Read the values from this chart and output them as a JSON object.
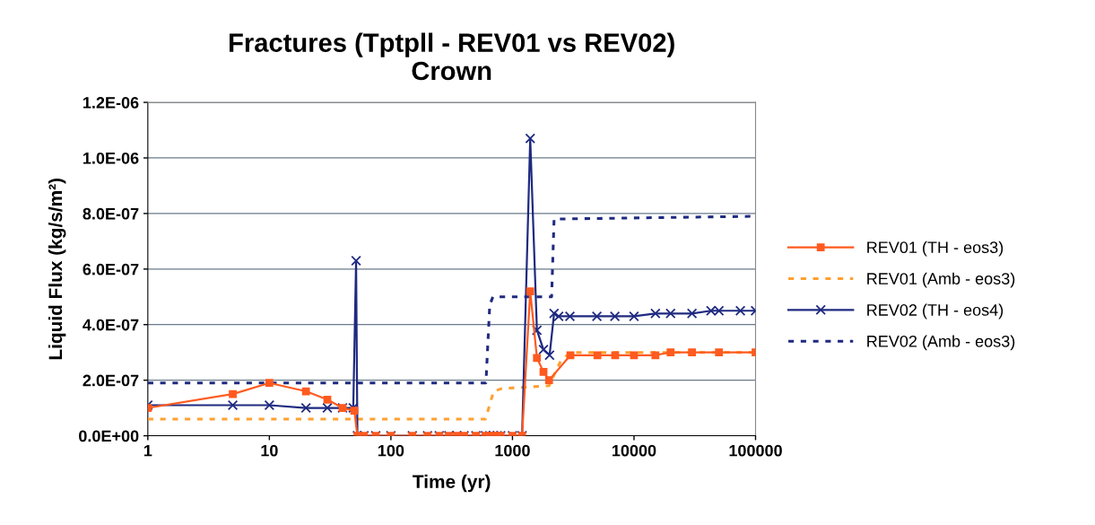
{
  "chart_data": {
    "type": "line",
    "title": "Fractures (Tptpll - REV01 vs REV02)\nCrown",
    "xlabel": "Time (yr)",
    "ylabel": "Liquid Flux (kg/s/m²)",
    "log": "x",
    "xlim": [
      1,
      100000
    ],
    "xticks": [
      1,
      10,
      100,
      1000,
      10000,
      100000
    ],
    "ylim": [
      0,
      1.2e-06
    ],
    "yticks": [
      {
        "value": 0,
        "label": "0.0E+00"
      },
      {
        "value": 2e-07,
        "label": "2.0E-07"
      },
      {
        "value": 4e-07,
        "label": "4.0E-07"
      },
      {
        "value": 6e-07,
        "label": "6.0E-07"
      },
      {
        "value": 8e-07,
        "label": "8.0E-07"
      },
      {
        "value": 1e-06,
        "label": "1.0E-06"
      },
      {
        "value": 1.2e-06,
        "label": "1.2E-06"
      }
    ],
    "grid": "y",
    "legend": "right",
    "series": [
      {
        "name": "REV01 (TH - eos3)",
        "color": "#ff5a1f",
        "marker": "square",
        "line_style": "solid",
        "x": [
          1,
          5,
          10,
          20,
          30,
          40,
          50,
          53,
          60,
          75,
          100,
          150,
          200,
          250,
          300,
          350,
          400,
          500,
          600,
          650,
          700,
          750,
          800,
          1000,
          1200,
          1400,
          1590,
          1800,
          2000,
          3000,
          5000,
          7000,
          10000,
          15000,
          20000,
          30000,
          50000,
          100000
        ],
        "values": [
          1e-07,
          1.5e-07,
          1.9e-07,
          1.6e-07,
          1.3e-07,
          1e-07,
          9e-08,
          0,
          0,
          0,
          0,
          0,
          0,
          0,
          0,
          0,
          0,
          0,
          0,
          0,
          0,
          0,
          0,
          0,
          0,
          5.2e-07,
          2.8e-07,
          2.3e-07,
          2e-07,
          2.9e-07,
          2.9e-07,
          2.9e-07,
          2.9e-07,
          2.9e-07,
          3e-07,
          3e-07,
          3e-07,
          3e-07
        ]
      },
      {
        "name": "REV01 (Amb - eos3)",
        "color": "#ffa030",
        "marker": "none",
        "line_style": "dotted",
        "x": [
          1,
          600,
          700,
          820,
          2000,
          2500,
          3000,
          100000
        ],
        "values": [
          6e-08,
          6e-08,
          1.6e-07,
          1.7e-07,
          1.8e-07,
          2.7e-07,
          3e-07,
          3e-07
        ]
      },
      {
        "name": "REV02 (TH - eos4)",
        "color": "#1f2a80",
        "marker": "cross",
        "line_style": "solid",
        "x": [
          1,
          5,
          10,
          20,
          30,
          40,
          49,
          51.7,
          53,
          60,
          75,
          100,
          150,
          200,
          250,
          300,
          350,
          400,
          500,
          600,
          650,
          700,
          750,
          800,
          1000,
          1200,
          1400,
          1590,
          1800,
          2020,
          2200,
          2400,
          2970,
          4950,
          6960,
          10000,
          15000,
          20000,
          30000,
          43000,
          50000,
          75000,
          100000
        ],
        "values": [
          1.1e-07,
          1.1e-07,
          1.1e-07,
          1e-07,
          1e-07,
          1e-07,
          1e-07,
          6.3e-07,
          0,
          0,
          0,
          0,
          0,
          0,
          0,
          0,
          0,
          0,
          0,
          0,
          0,
          0,
          0,
          0,
          0,
          0,
          1.07e-06,
          3.8e-07,
          3.1e-07,
          2.9e-07,
          4.4e-07,
          4.3e-07,
          4.3e-07,
          4.3e-07,
          4.3e-07,
          4.3e-07,
          4.4e-07,
          4.4e-07,
          4.4e-07,
          4.5e-07,
          4.5e-07,
          4.5e-07,
          4.5e-07
        ]
      },
      {
        "name": "REV02 (Amb - eos3)",
        "color": "#1f2a80",
        "marker": "none",
        "line_style": "dotted",
        "x": [
          1,
          605,
          650,
          690,
          2020,
          2100,
          2200,
          100000
        ],
        "values": [
          1.9e-07,
          1.9e-07,
          4.7e-07,
          5e-07,
          5e-07,
          5e-07,
          7.8e-07,
          7.9e-07
        ]
      }
    ]
  }
}
